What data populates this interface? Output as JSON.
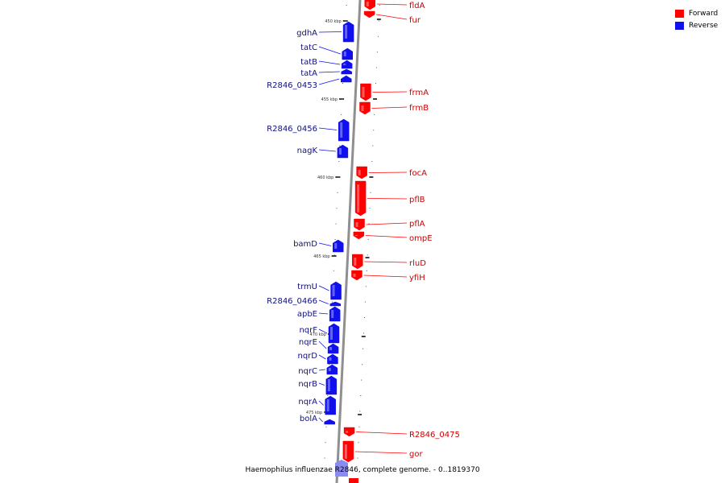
{
  "title": "Haemophilus influenzae R2846, complete genome. - 0..1819370",
  "legend": [
    {
      "label": "Forward",
      "color": "#ff0000"
    },
    {
      "label": "Reverse",
      "color": "#1010ee"
    }
  ],
  "colors": {
    "forward": "#ff0000",
    "reverse": "#1010ee",
    "backbone": "#8f8f8f",
    "forward_label": "#cc0000",
    "reverse_label": "#101080"
  },
  "ticks": [
    "450 kbp",
    "455 kbp",
    "460 kbp",
    "465 kbp",
    "470 kbp",
    "475 kbp"
  ],
  "genes": [
    {
      "name": "fldA",
      "strand": "forward"
    },
    {
      "name": "fur",
      "strand": "forward"
    },
    {
      "name": "gdhA",
      "strand": "reverse"
    },
    {
      "name": "tatC",
      "strand": "reverse"
    },
    {
      "name": "tatB",
      "strand": "reverse"
    },
    {
      "name": "tatA",
      "strand": "reverse"
    },
    {
      "name": "R2846_0453",
      "strand": "reverse"
    },
    {
      "name": "frmA",
      "strand": "forward"
    },
    {
      "name": "frmB",
      "strand": "forward"
    },
    {
      "name": "R2846_0456",
      "strand": "reverse"
    },
    {
      "name": "nagK",
      "strand": "reverse"
    },
    {
      "name": "focA",
      "strand": "forward"
    },
    {
      "name": "pflB",
      "strand": "forward"
    },
    {
      "name": "pflA",
      "strand": "forward"
    },
    {
      "name": "ompE",
      "strand": "forward"
    },
    {
      "name": "bamD",
      "strand": "reverse"
    },
    {
      "name": "rluD",
      "strand": "forward"
    },
    {
      "name": "yfiH",
      "strand": "forward"
    },
    {
      "name": "trmU",
      "strand": "reverse"
    },
    {
      "name": "R2846_0466",
      "strand": "reverse"
    },
    {
      "name": "apbE",
      "strand": "reverse"
    },
    {
      "name": "nqrF",
      "strand": "reverse"
    },
    {
      "name": "nqrE",
      "strand": "reverse"
    },
    {
      "name": "nqrD",
      "strand": "reverse"
    },
    {
      "name": "nqrC",
      "strand": "reverse"
    },
    {
      "name": "nqrB",
      "strand": "reverse"
    },
    {
      "name": "nqrA",
      "strand": "reverse"
    },
    {
      "name": "bolA",
      "strand": "reverse"
    },
    {
      "name": "R2846_0475",
      "strand": "forward"
    },
    {
      "name": "gor",
      "strand": "forward"
    }
  ]
}
